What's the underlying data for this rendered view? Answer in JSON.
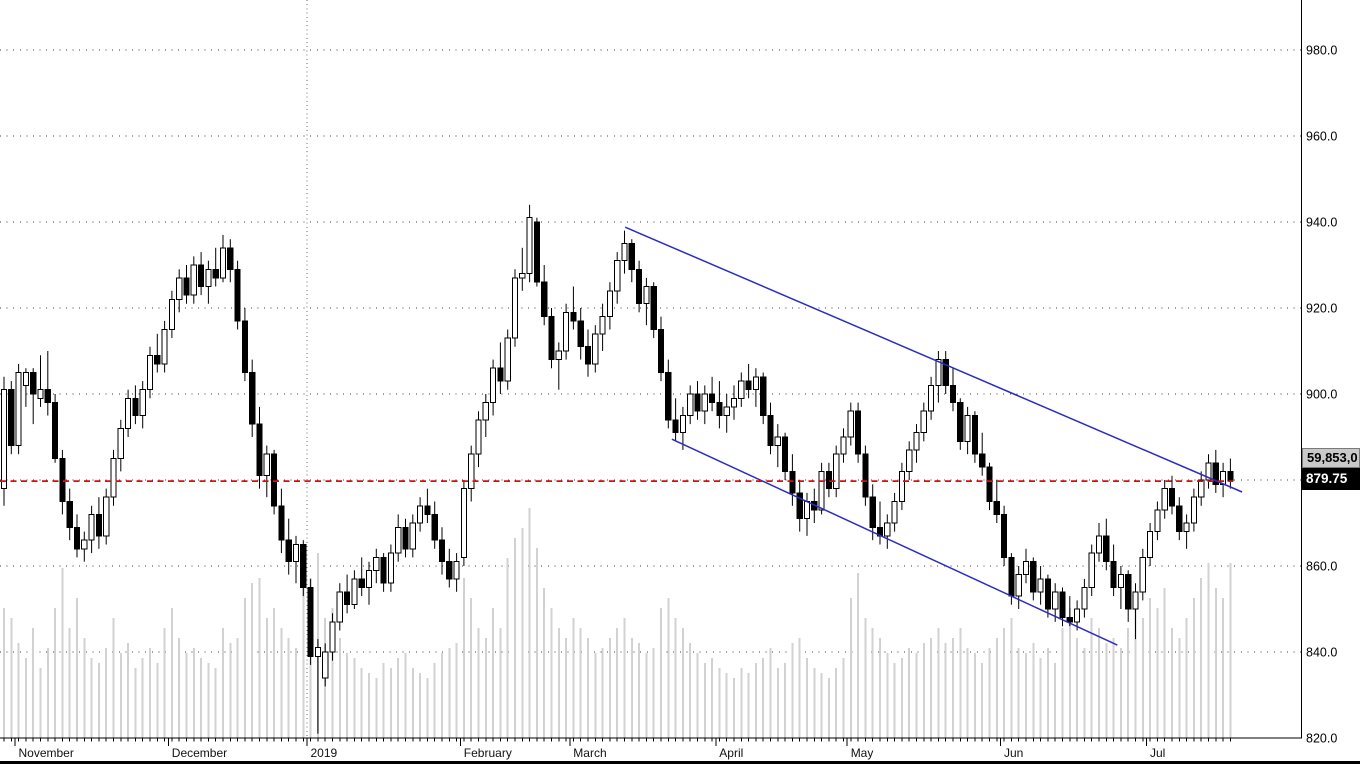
{
  "badges": {
    "volume_label": "59,853,0",
    "last_price_label": "879.75"
  },
  "colors": {
    "background": "#ffffff",
    "up_candle": "#ffffff",
    "down_candle": "#000000",
    "candle_outline": "#000000",
    "volume_bar": "#d2d2d2",
    "grid_dots": "#3c3c3c",
    "trend_line": "#2b2bc4",
    "last_price_line": "#cc1414",
    "axis": "#000000",
    "volume_badge_bg": "#c9c9c9",
    "price_badge_bg": "#000000",
    "price_badge_text": "#ffffff",
    "bottom_bar": "#000000"
  },
  "y_axis": {
    "side": "right",
    "ticks": [
      {
        "label": "980.0",
        "price": 980
      },
      {
        "label": "960.0",
        "price": 960
      },
      {
        "label": "940.0",
        "price": 940
      },
      {
        "label": "920.0",
        "price": 920
      },
      {
        "label": "900.0",
        "price": 900
      },
      {
        "label": "880.0",
        "price": 880
      },
      {
        "label": "860.0",
        "price": 860
      },
      {
        "label": "840.0",
        "price": 840
      },
      {
        "label": "820.0",
        "price": 820
      }
    ]
  },
  "x_axis": {
    "months": [
      {
        "label": "November",
        "index": 2
      },
      {
        "label": "December",
        "index": 23
      },
      {
        "label": "2019",
        "index": 42,
        "year_line": true
      },
      {
        "label": "February",
        "index": 63
      },
      {
        "label": "March",
        "index": 78
      },
      {
        "label": "April",
        "index": 98
      },
      {
        "label": "May",
        "index": 116
      },
      {
        "label": "Jun",
        "index": 137
      },
      {
        "label": "Jul",
        "index": 157
      }
    ]
  },
  "chart_data": {
    "type": "candlestick",
    "title": "",
    "ylim": [
      818.5,
      991.6
    ],
    "grid": true,
    "last_price": 879.75,
    "price_line": {
      "price": 879.75,
      "style": "dashed"
    },
    "trend_channel": [
      {
        "from_index": 85.1,
        "from_price": 938.8,
        "to_index": 169.6,
        "to_price": 877.2
      },
      {
        "from_index": 91.5,
        "from_price": 889.5,
        "to_index": 152.5,
        "to_price": 841.6
      }
    ],
    "ohlc_format": [
      "open",
      "high",
      "low",
      "close",
      "volume_rel"
    ],
    "candles": [
      [
        878,
        904,
        874,
        901,
        130
      ],
      [
        901,
        903,
        886,
        888,
        120
      ],
      [
        888,
        907,
        886,
        905,
        95
      ],
      [
        902,
        906,
        897,
        905,
        80
      ],
      [
        905,
        906,
        893,
        900,
        110
      ],
      [
        899,
        909,
        897,
        901,
        70
      ],
      [
        901,
        910,
        895,
        898,
        90
      ],
      [
        898,
        900,
        884,
        885,
        130
      ],
      [
        885,
        887,
        872,
        875,
        170
      ],
      [
        875,
        878,
        866,
        869,
        110
      ],
      [
        869,
        872,
        862,
        864,
        140
      ],
      [
        864,
        868,
        861,
        866,
        100
      ],
      [
        866,
        874,
        863,
        872,
        80
      ],
      [
        872,
        876,
        864,
        867,
        75
      ],
      [
        867,
        878,
        865,
        876,
        90
      ],
      [
        876,
        887,
        874,
        885,
        120
      ],
      [
        885,
        894,
        882,
        892,
        85
      ],
      [
        892,
        901,
        890,
        899,
        95
      ],
      [
        899,
        902,
        893,
        895,
        70
      ],
      [
        895,
        903,
        892,
        901,
        80
      ],
      [
        901,
        911,
        899,
        909,
        90
      ],
      [
        909,
        914,
        905,
        907,
        75
      ],
      [
        907,
        917,
        905,
        915,
        110
      ],
      [
        915,
        924,
        913,
        922,
        130
      ],
      [
        922,
        929,
        919,
        927,
        100
      ],
      [
        927,
        930,
        921,
        923,
        85
      ],
      [
        923,
        932,
        921,
        930,
        90
      ],
      [
        930,
        933,
        923,
        925,
        80
      ],
      [
        925,
        931,
        921,
        929,
        75
      ],
      [
        929,
        934,
        925,
        927,
        70
      ],
      [
        927,
        937,
        926,
        934,
        110
      ],
      [
        934,
        936,
        926,
        929,
        95
      ],
      [
        929,
        931,
        915,
        917,
        100
      ],
      [
        917,
        920,
        903,
        905,
        140
      ],
      [
        905,
        908,
        890,
        893,
        155
      ],
      [
        893,
        897,
        878,
        881,
        160
      ],
      [
        881,
        888,
        876,
        886,
        120
      ],
      [
        886,
        887,
        872,
        874,
        130
      ],
      [
        874,
        878,
        863,
        866,
        110
      ],
      [
        866,
        871,
        858,
        861,
        100
      ],
      [
        861,
        867,
        856,
        865,
        90
      ],
      [
        865,
        866,
        853,
        855,
        150
      ],
      [
        855,
        857,
        837,
        839,
        160
      ],
      [
        839,
        843,
        821,
        841,
        185
      ],
      [
        834,
        842,
        832,
        840,
        120
      ],
      [
        840,
        849,
        838,
        847,
        130
      ],
      [
        847,
        856,
        845,
        854,
        100
      ],
      [
        854,
        858,
        849,
        851,
        85
      ],
      [
        851,
        859,
        850,
        857,
        80
      ],
      [
        857,
        862,
        853,
        855,
        70
      ],
      [
        855,
        861,
        851,
        859,
        65
      ],
      [
        859,
        864,
        856,
        862,
        60
      ],
      [
        862,
        863,
        854,
        856,
        75
      ],
      [
        856,
        865,
        854,
        863,
        70
      ],
      [
        863,
        872,
        861,
        869,
        80
      ],
      [
        869,
        871,
        862,
        864,
        85
      ],
      [
        864,
        872,
        862,
        870,
        70
      ],
      [
        870,
        876,
        868,
        874,
        65
      ],
      [
        874,
        878,
        870,
        872,
        60
      ],
      [
        872,
        875,
        864,
        866,
        75
      ],
      [
        866,
        869,
        858,
        861,
        85
      ],
      [
        861,
        864,
        855,
        857,
        90
      ],
      [
        857,
        863,
        854,
        861,
        95
      ],
      [
        862,
        880,
        860,
        878,
        160
      ],
      [
        878,
        888,
        875,
        886,
        140
      ],
      [
        886,
        896,
        883,
        894,
        110
      ],
      [
        894,
        900,
        890,
        898,
        100
      ],
      [
        898,
        908,
        895,
        906,
        130
      ],
      [
        906,
        912,
        900,
        903,
        110
      ],
      [
        903,
        915,
        901,
        913,
        180
      ],
      [
        913,
        929,
        911,
        927,
        200
      ],
      [
        927,
        934,
        924,
        928,
        210
      ],
      [
        928,
        944,
        926,
        941,
        230
      ],
      [
        940,
        941,
        925,
        926,
        190
      ],
      [
        926,
        930,
        916,
        918,
        150
      ],
      [
        918,
        920,
        906,
        908,
        130
      ],
      [
        908,
        912,
        901,
        910,
        110
      ],
      [
        910,
        921,
        908,
        919,
        100
      ],
      [
        919,
        925,
        915,
        917,
        120
      ],
      [
        917,
        920,
        908,
        911,
        110
      ],
      [
        911,
        915,
        904,
        907,
        100
      ],
      [
        907,
        916,
        905,
        914,
        85
      ],
      [
        914,
        921,
        910,
        918,
        90
      ],
      [
        918,
        926,
        915,
        924,
        100
      ],
      [
        924,
        933,
        921,
        931,
        110
      ],
      [
        931,
        938,
        928,
        935,
        120
      ],
      [
        935,
        936,
        926,
        929,
        100
      ],
      [
        929,
        931,
        919,
        921,
        95
      ],
      [
        921,
        927,
        916,
        925,
        85
      ],
      [
        925,
        926,
        913,
        915,
        90
      ],
      [
        915,
        918,
        903,
        905,
        130
      ],
      [
        905,
        908,
        892,
        894,
        140
      ],
      [
        894,
        899,
        889,
        891,
        120
      ],
      [
        891,
        897,
        887,
        895,
        110
      ],
      [
        895,
        902,
        893,
        900,
        95
      ],
      [
        900,
        903,
        894,
        896,
        85
      ],
      [
        896,
        902,
        893,
        900,
        75
      ],
      [
        900,
        904,
        896,
        898,
        80
      ],
      [
        898,
        903,
        892,
        895,
        70
      ],
      [
        895,
        900,
        891,
        897,
        65
      ],
      [
        897,
        902,
        894,
        899,
        60
      ],
      [
        899,
        905,
        897,
        903,
        70
      ],
      [
        903,
        907,
        899,
        901,
        65
      ],
      [
        901,
        906,
        897,
        904,
        75
      ],
      [
        904,
        905,
        893,
        895,
        80
      ],
      [
        895,
        898,
        886,
        888,
        90
      ],
      [
        888,
        893,
        883,
        890,
        70
      ],
      [
        890,
        891,
        880,
        882,
        75
      ],
      [
        882,
        886,
        874,
        877,
        95
      ],
      [
        877,
        880,
        868,
        871,
        100
      ],
      [
        871,
        877,
        867,
        875,
        80
      ],
      [
        875,
        878,
        870,
        873,
        70
      ],
      [
        873,
        884,
        872,
        882,
        65
      ],
      [
        882,
        884,
        876,
        878,
        60
      ],
      [
        878,
        888,
        876,
        886,
        70
      ],
      [
        886,
        892,
        884,
        890,
        80
      ],
      [
        890,
        898,
        888,
        896,
        140
      ],
      [
        896,
        898,
        884,
        886,
        165
      ],
      [
        886,
        888,
        874,
        876,
        120
      ],
      [
        876,
        879,
        866,
        869,
        110
      ],
      [
        869,
        875,
        865,
        867,
        100
      ],
      [
        867,
        872,
        864,
        870,
        85
      ],
      [
        870,
        877,
        868,
        875,
        75
      ],
      [
        875,
        884,
        873,
        882,
        80
      ],
      [
        882,
        889,
        880,
        887,
        90
      ],
      [
        887,
        893,
        884,
        891,
        85
      ],
      [
        891,
        898,
        889,
        896,
        95
      ],
      [
        896,
        904,
        894,
        902,
        100
      ],
      [
        902,
        910,
        898,
        908,
        110
      ],
      [
        908,
        910,
        900,
        902,
        95
      ],
      [
        902,
        906,
        896,
        898,
        100
      ],
      [
        898,
        899,
        887,
        889,
        110
      ],
      [
        889,
        897,
        886,
        895,
        90
      ],
      [
        895,
        896,
        884,
        886,
        85
      ],
      [
        886,
        891,
        881,
        883,
        75
      ],
      [
        883,
        884,
        873,
        875,
        90
      ],
      [
        875,
        880,
        870,
        872,
        100
      ],
      [
        872,
        874,
        860,
        862,
        110
      ],
      [
        862,
        863,
        851,
        853,
        120
      ],
      [
        853,
        860,
        850,
        858,
        90
      ],
      [
        858,
        864,
        856,
        861,
        85
      ],
      [
        861,
        862,
        852,
        854,
        95
      ],
      [
        854,
        860,
        851,
        857,
        80
      ],
      [
        857,
        858,
        848,
        850,
        90
      ],
      [
        850,
        856,
        847,
        854,
        75
      ],
      [
        854,
        855,
        846,
        848,
        110
      ],
      [
        848,
        853,
        846,
        847,
        130
      ],
      [
        847,
        852,
        845,
        850,
        100
      ],
      [
        850,
        857,
        848,
        855,
        90
      ],
      [
        855,
        865,
        853,
        863,
        120
      ],
      [
        863,
        870,
        861,
        867,
        110
      ],
      [
        867,
        871,
        859,
        861,
        95
      ],
      [
        861,
        865,
        853,
        855,
        100
      ],
      [
        855,
        860,
        850,
        858,
        90
      ],
      [
        858,
        859,
        847,
        850,
        110
      ],
      [
        850,
        856,
        843,
        854,
        130
      ],
      [
        854,
        864,
        852,
        862,
        120
      ],
      [
        862,
        870,
        860,
        868,
        140
      ],
      [
        868,
        875,
        866,
        873,
        130
      ],
      [
        873,
        880,
        871,
        878,
        150
      ],
      [
        878,
        881,
        872,
        874,
        110
      ],
      [
        874,
        876,
        866,
        868,
        100
      ],
      [
        868,
        872,
        864,
        870,
        120
      ],
      [
        870,
        878,
        868,
        876,
        140
      ],
      [
        876,
        882,
        874,
        880,
        160
      ],
      [
        880,
        886,
        878,
        884,
        175
      ],
      [
        884,
        887,
        877,
        879,
        150
      ],
      [
        879,
        884,
        876,
        882,
        140
      ],
      [
        882,
        885,
        878,
        879.75,
        175
      ]
    ]
  }
}
